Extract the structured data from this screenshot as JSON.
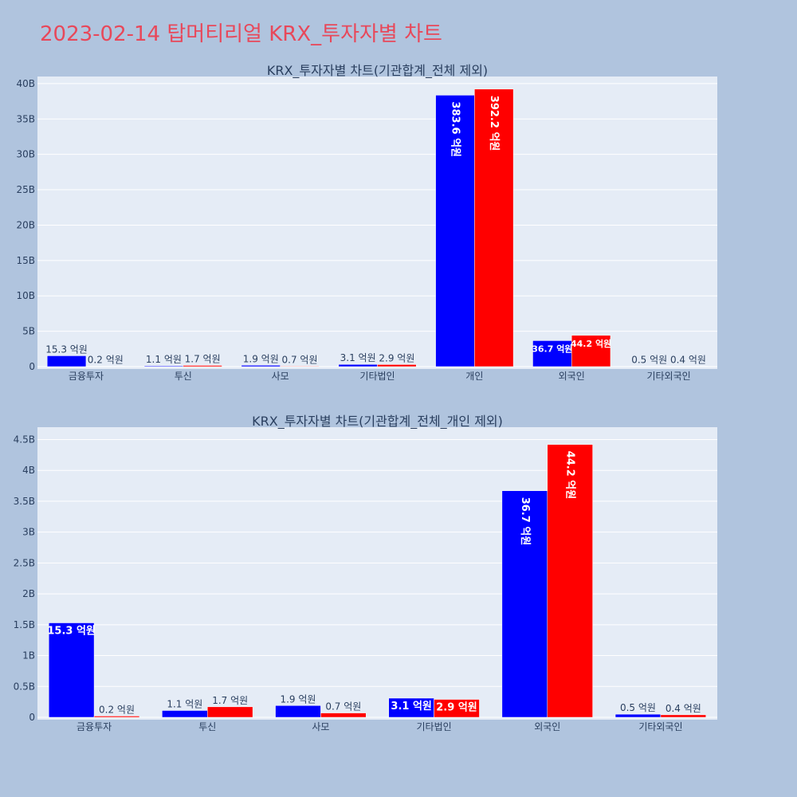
{
  "title": "2023-02-14 탑머티리얼 KRX_투자자별 차트",
  "colors": {
    "buy": "#0000ff",
    "sell": "#ff0000",
    "plot_bg": "#e5ecf6",
    "paper_bg": "#b0c4de",
    "title": "#e8485a"
  },
  "chart_data": [
    {
      "type": "bar",
      "title": "KRX_투자자별 차트(기관합계_전체 제외)",
      "categories": [
        "금융투자",
        "투신",
        "사모",
        "기타법인",
        "개인",
        "외국인",
        "기타외국인"
      ],
      "series": [
        {
          "color": "#0000ff",
          "values": [
            1530000000,
            110000000,
            190000000,
            310000000,
            38360000000,
            3670000000,
            50000000
          ],
          "labels": [
            "15.3 억원",
            "1.1 억원",
            "1.9 억원",
            "3.1 억원",
            "383.6 억원",
            "36.7 억원",
            "0.5 억원"
          ]
        },
        {
          "color": "#ff0000",
          "values": [
            20000000,
            170000000,
            70000000,
            290000000,
            39220000000,
            4420000000,
            40000000
          ],
          "labels": [
            "0.2 억원",
            "1.7 억원",
            "0.7 억원",
            "2.9 억원",
            "392.2 억원",
            "44.2 억원",
            "0.4 억원"
          ]
        }
      ],
      "yticks": [
        "0",
        "5B",
        "10B",
        "15B",
        "20B",
        "25B",
        "30B",
        "35B",
        "40B"
      ],
      "ylim": [
        0,
        41000000000
      ],
      "grid": true,
      "legend": "none"
    },
    {
      "type": "bar",
      "title": "KRX_투자자별 차트(기관합계_전체_개인 제외)",
      "categories": [
        "금융투자",
        "투신",
        "사모",
        "기타법인",
        "외국인",
        "기타외국인"
      ],
      "series": [
        {
          "color": "#0000ff",
          "values": [
            1530000000,
            110000000,
            190000000,
            310000000,
            3670000000,
            50000000
          ],
          "labels": [
            "15.3 억원",
            "1.1 억원",
            "1.9 억원",
            "3.1 억원",
            "36.7 억원",
            "0.5 억원"
          ]
        },
        {
          "color": "#ff0000",
          "values": [
            20000000,
            170000000,
            70000000,
            290000000,
            4420000000,
            40000000
          ],
          "labels": [
            "0.2 억원",
            "1.7 억원",
            "0.7 억원",
            "2.9 억원",
            "44.2 억원",
            "0.4 억원"
          ]
        }
      ],
      "yticks": [
        "0",
        "0.5B",
        "1B",
        "1.5B",
        "2B",
        "2.5B",
        "3B",
        "3.5B",
        "4B",
        "4.5B"
      ],
      "ylim": [
        0,
        4700000000
      ],
      "grid": true,
      "legend": "none"
    }
  ]
}
